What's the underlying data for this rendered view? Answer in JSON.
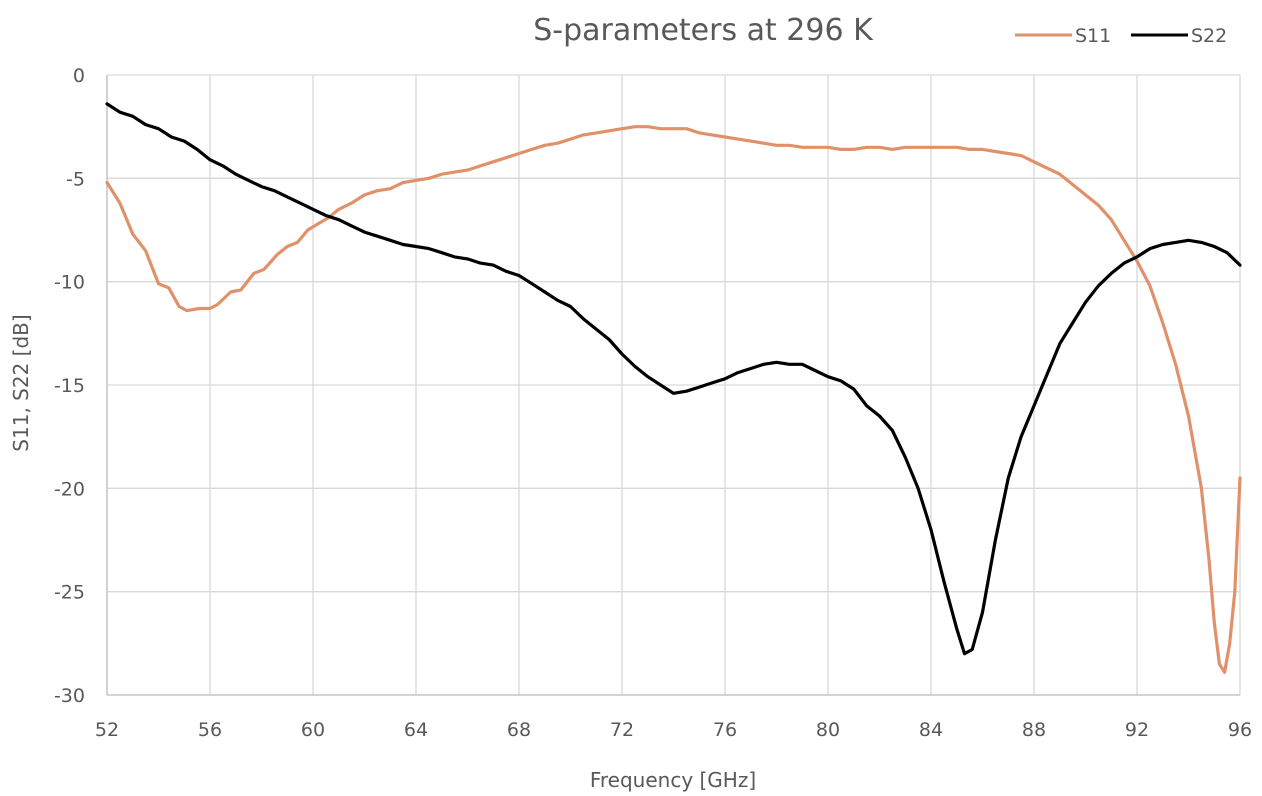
{
  "chart_data": {
    "type": "line",
    "title": "S-parameters at 296 K",
    "xlabel": "Frequency [GHz]",
    "ylabel": "S11, S22 [dB]",
    "xlim": [
      52,
      96
    ],
    "ylim": [
      -30,
      0
    ],
    "xticks": [
      52,
      56,
      60,
      64,
      68,
      72,
      76,
      80,
      84,
      88,
      92,
      96
    ],
    "yticks": [
      0,
      -5,
      -10,
      -15,
      -20,
      -25,
      -30
    ],
    "grid": true,
    "legend": "top-right",
    "series": [
      {
        "name": "S11",
        "color": "#e0916a",
        "points": [
          [
            52,
            -5.2
          ],
          [
            52.5,
            -6.2
          ],
          [
            53,
            -7.7
          ],
          [
            53.5,
            -8.5
          ],
          [
            54,
            -10.1
          ],
          [
            54.4,
            -10.3
          ],
          [
            54.8,
            -11.2
          ],
          [
            55.1,
            -11.4
          ],
          [
            55.6,
            -11.3
          ],
          [
            56,
            -11.3
          ],
          [
            56.3,
            -11.1
          ],
          [
            56.8,
            -10.5
          ],
          [
            57.2,
            -10.4
          ],
          [
            57.7,
            -9.6
          ],
          [
            58.1,
            -9.4
          ],
          [
            58.6,
            -8.7
          ],
          [
            59,
            -8.3
          ],
          [
            59.4,
            -8.1
          ],
          [
            59.8,
            -7.5
          ],
          [
            60.2,
            -7.2
          ],
          [
            60.6,
            -6.9
          ],
          [
            61,
            -6.5
          ],
          [
            61.5,
            -6.2
          ],
          [
            62,
            -5.8
          ],
          [
            62.5,
            -5.6
          ],
          [
            63,
            -5.5
          ],
          [
            63.5,
            -5.2
          ],
          [
            64,
            -5.1
          ],
          [
            64.5,
            -5.0
          ],
          [
            65,
            -4.8
          ],
          [
            65.5,
            -4.7
          ],
          [
            66,
            -4.6
          ],
          [
            66.5,
            -4.4
          ],
          [
            67,
            -4.2
          ],
          [
            67.5,
            -4.0
          ],
          [
            68,
            -3.8
          ],
          [
            68.5,
            -3.6
          ],
          [
            69,
            -3.4
          ],
          [
            69.5,
            -3.3
          ],
          [
            70,
            -3.1
          ],
          [
            70.5,
            -2.9
          ],
          [
            71,
            -2.8
          ],
          [
            71.5,
            -2.7
          ],
          [
            72,
            -2.6
          ],
          [
            72.5,
            -2.5
          ],
          [
            73,
            -2.5
          ],
          [
            73.5,
            -2.6
          ],
          [
            74,
            -2.6
          ],
          [
            74.5,
            -2.6
          ],
          [
            75,
            -2.8
          ],
          [
            75.5,
            -2.9
          ],
          [
            76,
            -3.0
          ],
          [
            76.5,
            -3.1
          ],
          [
            77,
            -3.2
          ],
          [
            77.5,
            -3.3
          ],
          [
            78,
            -3.4
          ],
          [
            78.5,
            -3.4
          ],
          [
            79,
            -3.5
          ],
          [
            79.5,
            -3.5
          ],
          [
            80,
            -3.5
          ],
          [
            80.5,
            -3.6
          ],
          [
            81,
            -3.6
          ],
          [
            81.5,
            -3.5
          ],
          [
            82,
            -3.5
          ],
          [
            82.5,
            -3.6
          ],
          [
            83,
            -3.5
          ],
          [
            83.5,
            -3.5
          ],
          [
            84,
            -3.5
          ],
          [
            84.5,
            -3.5
          ],
          [
            85,
            -3.5
          ],
          [
            85.5,
            -3.6
          ],
          [
            86,
            -3.6
          ],
          [
            86.5,
            -3.7
          ],
          [
            87,
            -3.8
          ],
          [
            87.5,
            -3.9
          ],
          [
            88,
            -4.2
          ],
          [
            88.5,
            -4.5
          ],
          [
            89,
            -4.8
          ],
          [
            89.5,
            -5.3
          ],
          [
            90,
            -5.8
          ],
          [
            90.5,
            -6.3
          ],
          [
            91,
            -7.0
          ],
          [
            91.5,
            -8.0
          ],
          [
            92,
            -9.0
          ],
          [
            92.5,
            -10.2
          ],
          [
            93,
            -12.0
          ],
          [
            93.5,
            -14.0
          ],
          [
            94,
            -16.5
          ],
          [
            94.5,
            -20.0
          ],
          [
            94.8,
            -23.5
          ],
          [
            95,
            -26.5
          ],
          [
            95.2,
            -28.5
          ],
          [
            95.4,
            -28.9
          ],
          [
            95.6,
            -27.5
          ],
          [
            95.8,
            -25.0
          ],
          [
            96,
            -19.5
          ]
        ]
      },
      {
        "name": "S22",
        "color": "#000000",
        "points": [
          [
            52,
            -1.4
          ],
          [
            52.5,
            -1.8
          ],
          [
            53,
            -2.0
          ],
          [
            53.5,
            -2.4
          ],
          [
            54,
            -2.6
          ],
          [
            54.5,
            -3.0
          ],
          [
            55,
            -3.2
          ],
          [
            55.5,
            -3.6
          ],
          [
            56,
            -4.1
          ],
          [
            56.5,
            -4.4
          ],
          [
            57,
            -4.8
          ],
          [
            57.5,
            -5.1
          ],
          [
            58,
            -5.4
          ],
          [
            58.5,
            -5.6
          ],
          [
            59,
            -5.9
          ],
          [
            59.5,
            -6.2
          ],
          [
            60,
            -6.5
          ],
          [
            60.5,
            -6.8
          ],
          [
            61,
            -7.0
          ],
          [
            61.5,
            -7.3
          ],
          [
            62,
            -7.6
          ],
          [
            62.5,
            -7.8
          ],
          [
            63,
            -8.0
          ],
          [
            63.5,
            -8.2
          ],
          [
            64,
            -8.3
          ],
          [
            64.5,
            -8.4
          ],
          [
            65,
            -8.6
          ],
          [
            65.5,
            -8.8
          ],
          [
            66,
            -8.9
          ],
          [
            66.5,
            -9.1
          ],
          [
            67,
            -9.2
          ],
          [
            67.5,
            -9.5
          ],
          [
            68,
            -9.7
          ],
          [
            68.5,
            -10.1
          ],
          [
            69,
            -10.5
          ],
          [
            69.5,
            -10.9
          ],
          [
            70,
            -11.2
          ],
          [
            70.5,
            -11.8
          ],
          [
            71,
            -12.3
          ],
          [
            71.5,
            -12.8
          ],
          [
            72,
            -13.5
          ],
          [
            72.5,
            -14.1
          ],
          [
            73,
            -14.6
          ],
          [
            73.5,
            -15.0
          ],
          [
            74,
            -15.4
          ],
          [
            74.5,
            -15.3
          ],
          [
            75,
            -15.1
          ],
          [
            75.5,
            -14.9
          ],
          [
            76,
            -14.7
          ],
          [
            76.5,
            -14.4
          ],
          [
            77,
            -14.2
          ],
          [
            77.5,
            -14.0
          ],
          [
            78,
            -13.9
          ],
          [
            78.5,
            -14.0
          ],
          [
            79,
            -14.0
          ],
          [
            79.5,
            -14.3
          ],
          [
            80,
            -14.6
          ],
          [
            80.5,
            -14.8
          ],
          [
            81,
            -15.2
          ],
          [
            81.5,
            -16.0
          ],
          [
            82,
            -16.5
          ],
          [
            82.5,
            -17.2
          ],
          [
            83,
            -18.5
          ],
          [
            83.5,
            -20.0
          ],
          [
            84,
            -22.0
          ],
          [
            84.5,
            -24.5
          ],
          [
            85,
            -26.8
          ],
          [
            85.3,
            -28.0
          ],
          [
            85.6,
            -27.8
          ],
          [
            86,
            -26.0
          ],
          [
            86.5,
            -22.5
          ],
          [
            87,
            -19.5
          ],
          [
            87.5,
            -17.5
          ],
          [
            88,
            -16.0
          ],
          [
            88.5,
            -14.5
          ],
          [
            89,
            -13.0
          ],
          [
            89.5,
            -12.0
          ],
          [
            90,
            -11.0
          ],
          [
            90.5,
            -10.2
          ],
          [
            91,
            -9.6
          ],
          [
            91.5,
            -9.1
          ],
          [
            92,
            -8.8
          ],
          [
            92.5,
            -8.4
          ],
          [
            93,
            -8.2
          ],
          [
            93.5,
            -8.1
          ],
          [
            94,
            -8.0
          ],
          [
            94.5,
            -8.1
          ],
          [
            95,
            -8.3
          ],
          [
            95.5,
            -8.6
          ],
          [
            96,
            -9.2
          ]
        ]
      }
    ]
  }
}
